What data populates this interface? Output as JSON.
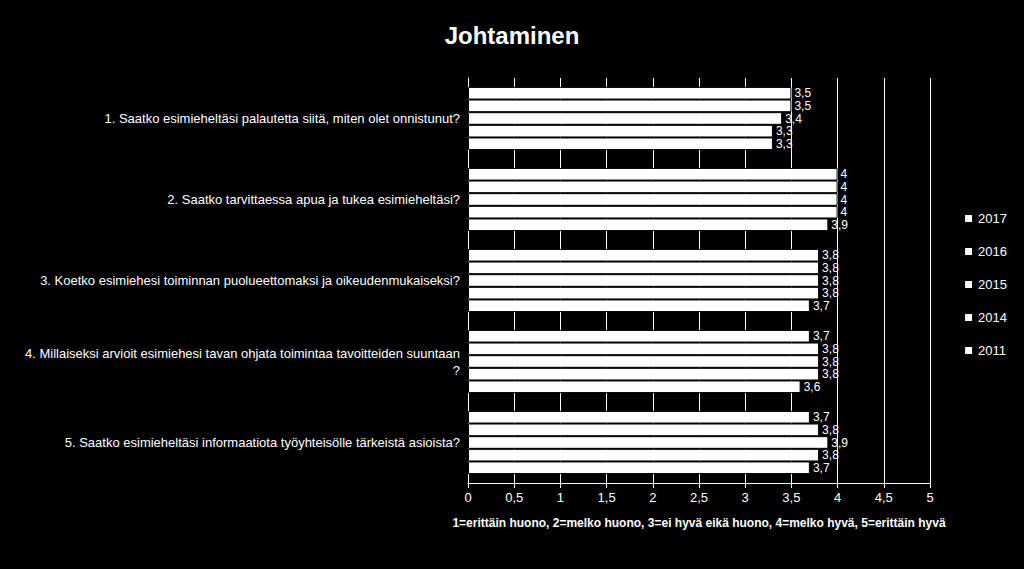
{
  "chart_data": {
    "type": "bar",
    "title": "Johtaminen",
    "orientation": "horizontal",
    "categories": [
      "1. Saatko esimieheltäsi palautetta siitä, miten olet onnistunut?",
      "2. Saatko tarvittaessa apua ja tukea esimieheltäsi?",
      "3. Koetko esimiehesi toiminnan puolueettomaksi ja oikeudenmukaiseksi?",
      "4. Millaiseksi arvioit esimiehesi tavan ohjata toimintaa tavoitteiden suuntaan?",
      "5. Saatko esimieheltäsi informaatiota työyhteisölle tärkeistä asioista?"
    ],
    "series": [
      {
        "name": "2017",
        "color": "#ffffff",
        "values": [
          3.5,
          4,
          3.8,
          3.7,
          3.7
        ],
        "value_labels": [
          "3,5",
          "4",
          "3,8",
          "3,7",
          "3,7"
        ]
      },
      {
        "name": "2016",
        "color": "#ffffff",
        "values": [
          3.5,
          4,
          3.8,
          3.8,
          3.8
        ],
        "value_labels": [
          "3,5",
          "4",
          "3,8",
          "3,8",
          "3,8"
        ]
      },
      {
        "name": "2015",
        "color": "#ffffff",
        "values": [
          3.4,
          4,
          3.8,
          3.8,
          3.9
        ],
        "value_labels": [
          "3,4",
          "4",
          "3,8",
          "3,8",
          "3,9"
        ]
      },
      {
        "name": "2014",
        "color": "#ffffff",
        "values": [
          3.3,
          4,
          3.8,
          3.8,
          3.8
        ],
        "value_labels": [
          "3,3",
          "4",
          "3,8",
          "3,8",
          "3,8"
        ]
      },
      {
        "name": "2011",
        "color": "#ffffff",
        "values": [
          3.3,
          3.9,
          3.7,
          3.6,
          3.7
        ],
        "value_labels": [
          "3,3",
          "3,9",
          "3,7",
          "3,6",
          "3,7"
        ]
      }
    ],
    "x_label": "1=erittäin huono, 2=melko huono, 3=ei hyvä eikä huono, 4=melko hyvä, 5=erittäin hyvä",
    "xlim": [
      0,
      5
    ],
    "xticks": [
      0,
      {
        "value": 0.5,
        "label": "0,5"
      },
      1,
      {
        "value": 1.5,
        "label": "1,5"
      },
      2,
      {
        "value": 2.5,
        "label": "2,5"
      },
      3,
      {
        "value": 3.5,
        "label": "3,5"
      },
      4,
      {
        "value": 4.5,
        "label": "4,5"
      },
      5
    ],
    "grid": true,
    "legend": "right",
    "data_labels": true
  }
}
